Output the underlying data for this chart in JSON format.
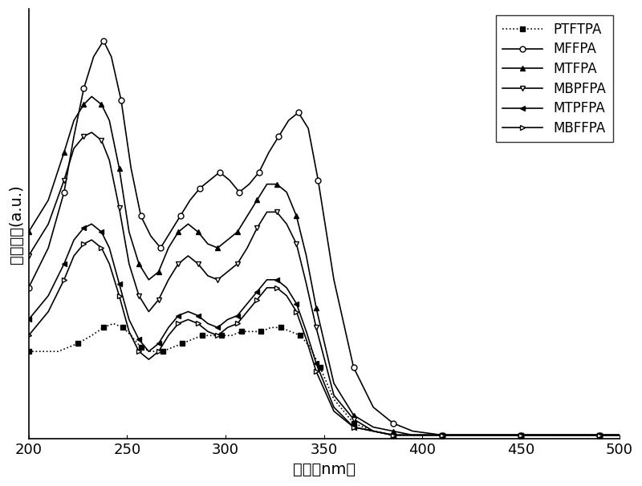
{
  "xlabel": "波长（nm）",
  "ylabel": "吸收强度(a.u.)",
  "xlim": [
    200,
    500
  ],
  "ylim": [
    0,
    1.08
  ],
  "xticks": [
    200,
    250,
    300,
    350,
    400,
    450,
    500
  ],
  "series": [
    {
      "name": "PTFTPA",
      "style": "dotted",
      "marker": "s",
      "marker_fill": "black",
      "color": "black",
      "x": [
        200,
        215,
        225,
        232,
        238,
        243,
        248,
        252,
        257,
        262,
        268,
        273,
        278,
        283,
        288,
        293,
        298,
        303,
        308,
        313,
        318,
        323,
        328,
        333,
        338,
        343,
        348,
        355,
        365,
        375,
        385,
        395,
        410,
        430,
        450,
        470,
        490,
        500
      ],
      "y": [
        0.22,
        0.22,
        0.24,
        0.26,
        0.28,
        0.29,
        0.28,
        0.26,
        0.23,
        0.22,
        0.22,
        0.23,
        0.24,
        0.25,
        0.26,
        0.26,
        0.26,
        0.26,
        0.27,
        0.27,
        0.27,
        0.28,
        0.28,
        0.27,
        0.26,
        0.23,
        0.18,
        0.1,
        0.04,
        0.02,
        0.01,
        0.01,
        0.01,
        0.01,
        0.01,
        0.01,
        0.01,
        0.01
      ]
    },
    {
      "name": "MFFPA",
      "style": "solid",
      "marker": "o",
      "marker_fill": "white",
      "color": "black",
      "x": [
        200,
        210,
        218,
        223,
        228,
        233,
        238,
        242,
        247,
        252,
        257,
        262,
        267,
        272,
        277,
        282,
        287,
        292,
        297,
        302,
        307,
        312,
        317,
        322,
        327,
        332,
        337,
        342,
        347,
        355,
        365,
        375,
        385,
        395,
        410,
        430,
        450,
        470,
        490,
        500
      ],
      "y": [
        0.38,
        0.48,
        0.62,
        0.76,
        0.88,
        0.96,
        1.0,
        0.96,
        0.85,
        0.68,
        0.56,
        0.51,
        0.48,
        0.52,
        0.56,
        0.6,
        0.63,
        0.65,
        0.67,
        0.65,
        0.62,
        0.64,
        0.67,
        0.72,
        0.76,
        0.8,
        0.82,
        0.78,
        0.65,
        0.4,
        0.18,
        0.08,
        0.04,
        0.02,
        0.01,
        0.01,
        0.01,
        0.01,
        0.01,
        0.01
      ]
    },
    {
      "name": "MTFPA",
      "style": "solid",
      "marker": "^",
      "marker_fill": "black",
      "color": "black",
      "x": [
        200,
        210,
        218,
        223,
        228,
        232,
        237,
        241,
        246,
        251,
        256,
        261,
        266,
        271,
        276,
        281,
        286,
        291,
        296,
        301,
        306,
        311,
        316,
        321,
        326,
        331,
        336,
        341,
        346,
        355,
        365,
        375,
        385,
        395,
        410,
        430,
        450,
        470,
        490,
        500
      ],
      "y": [
        0.52,
        0.6,
        0.72,
        0.8,
        0.84,
        0.86,
        0.84,
        0.8,
        0.68,
        0.52,
        0.44,
        0.4,
        0.42,
        0.48,
        0.52,
        0.54,
        0.52,
        0.49,
        0.48,
        0.5,
        0.52,
        0.56,
        0.6,
        0.64,
        0.64,
        0.62,
        0.56,
        0.46,
        0.33,
        0.14,
        0.06,
        0.03,
        0.02,
        0.01,
        0.01,
        0.01,
        0.01,
        0.01,
        0.01,
        0.01
      ]
    },
    {
      "name": "MBPFPA",
      "style": "solid",
      "marker": "v",
      "marker_fill": "white",
      "color": "black",
      "x": [
        200,
        210,
        218,
        223,
        228,
        232,
        237,
        241,
        246,
        251,
        256,
        261,
        266,
        271,
        276,
        281,
        286,
        291,
        296,
        301,
        306,
        311,
        316,
        321,
        326,
        331,
        336,
        341,
        346,
        355,
        365,
        375,
        385,
        395,
        410,
        430,
        450,
        470,
        490,
        500
      ],
      "y": [
        0.46,
        0.54,
        0.65,
        0.73,
        0.76,
        0.77,
        0.75,
        0.7,
        0.58,
        0.44,
        0.36,
        0.32,
        0.35,
        0.4,
        0.44,
        0.46,
        0.44,
        0.41,
        0.4,
        0.42,
        0.44,
        0.48,
        0.53,
        0.57,
        0.57,
        0.54,
        0.49,
        0.39,
        0.28,
        0.11,
        0.05,
        0.02,
        0.01,
        0.01,
        0.01,
        0.01,
        0.01,
        0.01,
        0.01,
        0.01
      ]
    },
    {
      "name": "MTPFPA",
      "style": "solid",
      "marker": "<",
      "marker_fill": "black",
      "color": "black",
      "x": [
        200,
        210,
        218,
        223,
        228,
        232,
        237,
        241,
        246,
        251,
        256,
        261,
        266,
        271,
        276,
        281,
        286,
        291,
        296,
        301,
        306,
        311,
        316,
        321,
        326,
        331,
        336,
        341,
        346,
        355,
        365,
        375,
        385,
        395,
        410,
        430,
        450,
        470,
        490,
        500
      ],
      "y": [
        0.3,
        0.36,
        0.44,
        0.5,
        0.53,
        0.54,
        0.52,
        0.48,
        0.39,
        0.3,
        0.25,
        0.22,
        0.24,
        0.28,
        0.31,
        0.32,
        0.31,
        0.29,
        0.28,
        0.3,
        0.31,
        0.34,
        0.37,
        0.4,
        0.4,
        0.38,
        0.34,
        0.27,
        0.19,
        0.08,
        0.03,
        0.02,
        0.01,
        0.01,
        0.01,
        0.01,
        0.01,
        0.01,
        0.01,
        0.01
      ]
    },
    {
      "name": "MBFFPA",
      "style": "solid",
      "marker": ">",
      "marker_fill": "white",
      "color": "black",
      "x": [
        200,
        210,
        218,
        223,
        228,
        232,
        237,
        241,
        246,
        251,
        256,
        261,
        266,
        271,
        276,
        281,
        286,
        291,
        296,
        301,
        306,
        311,
        316,
        321,
        326,
        331,
        336,
        341,
        346,
        355,
        365,
        375,
        385,
        395,
        410,
        430,
        450,
        470,
        490,
        500
      ],
      "y": [
        0.26,
        0.32,
        0.4,
        0.46,
        0.49,
        0.5,
        0.48,
        0.44,
        0.36,
        0.27,
        0.22,
        0.2,
        0.22,
        0.26,
        0.29,
        0.3,
        0.29,
        0.27,
        0.26,
        0.28,
        0.29,
        0.32,
        0.35,
        0.38,
        0.38,
        0.36,
        0.32,
        0.25,
        0.17,
        0.07,
        0.03,
        0.02,
        0.01,
        0.01,
        0.01,
        0.01,
        0.01,
        0.01,
        0.01,
        0.01
      ]
    }
  ],
  "legend_loc": "upper right",
  "background_color": "#ffffff",
  "font_size": 14,
  "tick_fontsize": 13,
  "legend_fontsize": 12,
  "marker_size": 5,
  "linewidth": 1.2
}
